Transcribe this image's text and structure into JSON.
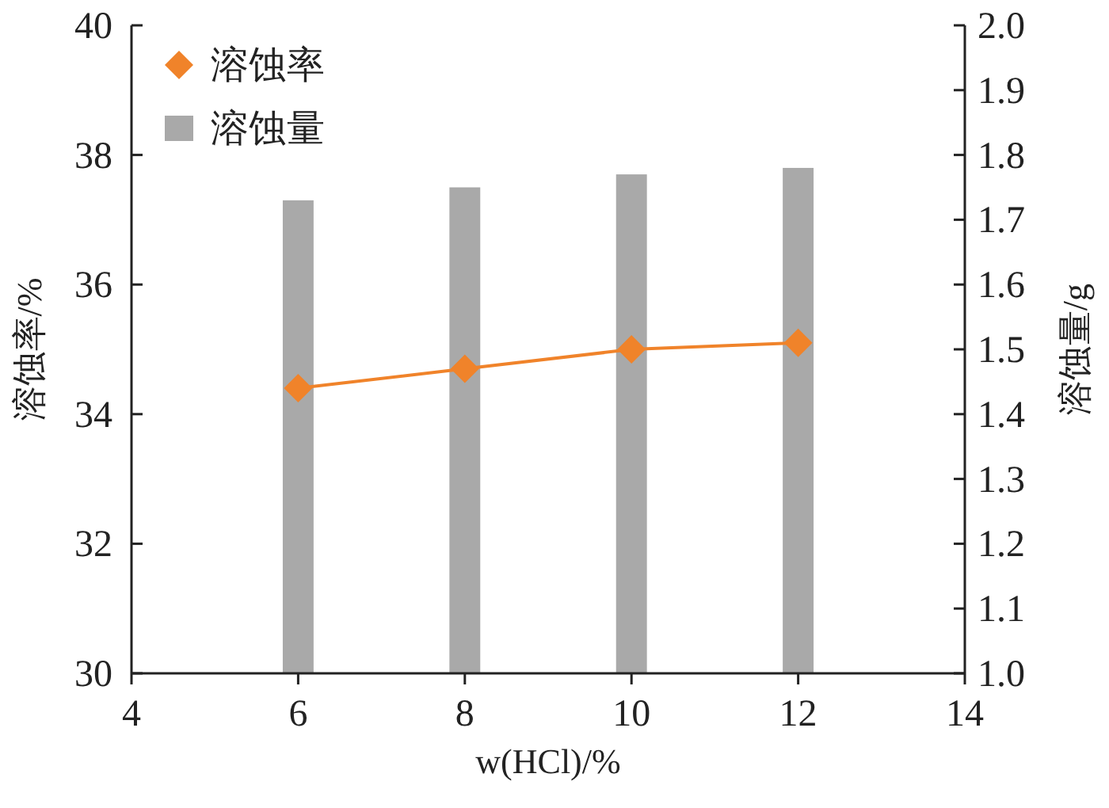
{
  "chart_data": {
    "type": "bar",
    "xlabel": "w(HCl)/%",
    "ylabel": "溶蚀率/%",
    "y2label": "溶蚀量/g",
    "x": [
      6,
      8,
      10,
      12
    ],
    "xlim": [
      4,
      14
    ],
    "xticks": [
      4,
      6,
      8,
      10,
      12,
      14
    ],
    "ylim": [
      30,
      40
    ],
    "yticks": [
      30,
      32,
      34,
      36,
      38,
      40
    ],
    "y2lim": [
      1.0,
      2.0
    ],
    "y2ticks": [
      {
        "value": 1.0,
        "label": "1.0"
      },
      1.1,
      1.2,
      1.3,
      1.4,
      1.5,
      1.6,
      1.7,
      1.8,
      1.9,
      {
        "value": 2.0,
        "label": "2.0"
      }
    ],
    "legend": "top left",
    "grid": false,
    "marker": "diamond",
    "series": [
      {
        "name": "溶蚀率",
        "type": "line",
        "color": "#f0832a",
        "values": [
          34.4,
          34.7,
          35.0,
          35.1
        ]
      },
      {
        "name": "溶蚀量",
        "axis": "y2",
        "color": "#a9a9a9",
        "values": [
          1.73,
          1.75,
          1.77,
          1.78
        ]
      }
    ]
  }
}
